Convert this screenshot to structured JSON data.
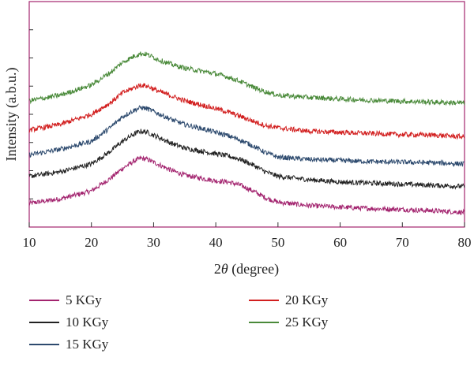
{
  "chart_data": {
    "type": "line",
    "title": "",
    "xlabel_prefix": "2",
    "xlabel_symbol": "θ",
    "xlabel_suffix": " (degree)",
    "ylabel": "Intensity (a.b.u.)",
    "xlim": [
      10,
      80
    ],
    "x_ticks": [
      10,
      20,
      30,
      40,
      50,
      60,
      70,
      80
    ],
    "y_tick_count": 9,
    "legend_placement": "bottom",
    "series": [
      {
        "name": "5 KGy",
        "color": "#a3246f",
        "x": [
          10,
          15,
          20,
          23,
          25,
          27,
          28,
          29,
          31,
          33,
          35,
          38,
          40,
          42,
          44,
          46,
          48,
          50,
          55,
          60,
          65,
          70,
          75,
          80
        ],
        "y": [
          0.105,
          0.125,
          0.16,
          0.215,
          0.26,
          0.295,
          0.305,
          0.3,
          0.275,
          0.25,
          0.23,
          0.215,
          0.205,
          0.2,
          0.185,
          0.16,
          0.13,
          0.11,
          0.095,
          0.088,
          0.082,
          0.078,
          0.072,
          0.065
        ]
      },
      {
        "name": "10 KGy",
        "color": "#222222",
        "x": [
          10,
          15,
          20,
          23,
          25,
          27,
          28,
          29,
          31,
          33,
          35,
          38,
          40,
          42,
          44,
          46,
          48,
          50,
          55,
          60,
          65,
          70,
          75,
          80
        ],
        "y": [
          0.225,
          0.245,
          0.28,
          0.335,
          0.38,
          0.415,
          0.425,
          0.42,
          0.395,
          0.37,
          0.35,
          0.335,
          0.325,
          0.315,
          0.3,
          0.275,
          0.245,
          0.225,
          0.21,
          0.2,
          0.195,
          0.19,
          0.185,
          0.18
        ]
      },
      {
        "name": "15 KGy",
        "color": "#2d4a6e",
        "x": [
          10,
          15,
          20,
          23,
          25,
          27,
          28,
          29,
          31,
          33,
          35,
          38,
          40,
          42,
          44,
          46,
          48,
          50,
          55,
          60,
          65,
          70,
          75,
          80
        ],
        "y": [
          0.32,
          0.345,
          0.38,
          0.44,
          0.49,
          0.52,
          0.53,
          0.525,
          0.5,
          0.475,
          0.455,
          0.435,
          0.42,
          0.405,
          0.385,
          0.36,
          0.33,
          0.31,
          0.3,
          0.295,
          0.29,
          0.288,
          0.285,
          0.28
        ]
      },
      {
        "name": "20 KGy",
        "color": "#d21f1f",
        "x": [
          10,
          15,
          20,
          23,
          25,
          27,
          28,
          29,
          31,
          33,
          35,
          38,
          40,
          42,
          44,
          46,
          48,
          50,
          55,
          60,
          65,
          70,
          75,
          80
        ],
        "y": [
          0.43,
          0.455,
          0.5,
          0.55,
          0.595,
          0.62,
          0.63,
          0.625,
          0.6,
          0.58,
          0.56,
          0.54,
          0.525,
          0.51,
          0.49,
          0.47,
          0.45,
          0.44,
          0.425,
          0.42,
          0.415,
          0.41,
          0.408,
          0.4
        ]
      },
      {
        "name": "25 KGy",
        "color": "#4a8a3a",
        "x": [
          10,
          15,
          20,
          23,
          25,
          27,
          28,
          29,
          31,
          33,
          35,
          38,
          40,
          42,
          44,
          46,
          48,
          50,
          55,
          60,
          65,
          70,
          75,
          80
        ],
        "y": [
          0.56,
          0.585,
          0.63,
          0.685,
          0.73,
          0.76,
          0.77,
          0.765,
          0.74,
          0.72,
          0.705,
          0.69,
          0.68,
          0.665,
          0.645,
          0.62,
          0.6,
          0.585,
          0.575,
          0.568,
          0.562,
          0.558,
          0.554,
          0.55
        ]
      }
    ]
  }
}
